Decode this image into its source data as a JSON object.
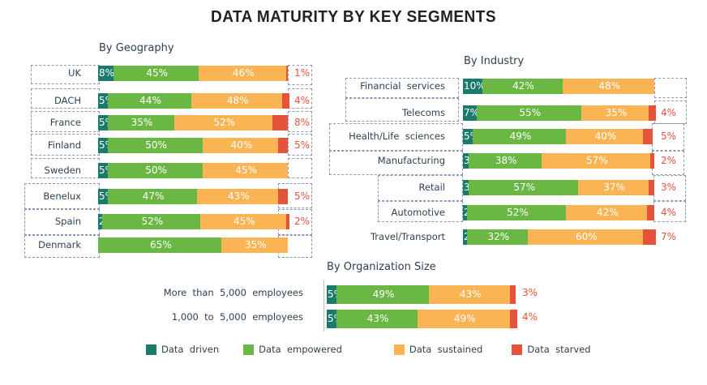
{
  "title": "DATA MATURITY BY KEY SEGMENTS",
  "colors": {
    "data_driven": "#1a7a6b",
    "data_empowered": "#6ab744",
    "data_sustained": "#fbb454",
    "data_starved": "#e5533b"
  },
  "legend": [
    {
      "key": "data_driven",
      "label": "Data  driven"
    },
    {
      "key": "data_empowered",
      "label": "Data  empowered"
    },
    {
      "key": "data_sustained",
      "label": "Data  sustained"
    },
    {
      "key": "data_starved",
      "label": "Data  starved"
    }
  ],
  "chart_data": [
    {
      "type": "bar",
      "stacked": true,
      "orientation": "horizontal",
      "title": "By Geography",
      "categories": [
        "UK",
        "DACH",
        "France",
        "Finland",
        "Sweden",
        "Benelux",
        "Spain",
        "Denmark"
      ],
      "series": [
        {
          "name": "Data driven",
          "values": [
            8,
            5,
            5,
            5,
            5,
            5,
            2,
            0
          ],
          "labels": [
            "8%",
            "5%",
            "5%",
            "5%",
            "5%",
            "5%",
            "2%",
            ""
          ]
        },
        {
          "name": "Data empowered",
          "values": [
            45,
            44,
            35,
            50,
            50,
            47,
            52,
            65
          ],
          "labels": [
            "45%",
            "44%",
            "35%",
            "50%",
            "50%",
            "47%",
            "52%",
            "65%"
          ]
        },
        {
          "name": "Data sustained",
          "values": [
            46,
            48,
            52,
            40,
            45,
            43,
            45,
            35
          ],
          "labels": [
            "46%",
            "48%",
            "52%",
            "40%",
            "45%",
            "43%",
            "45%",
            "35%"
          ]
        },
        {
          "name": "Data starved",
          "values": [
            1,
            4,
            8,
            5,
            0,
            5,
            2,
            0
          ],
          "labels": [
            "1%",
            "4%",
            "8%",
            "5%",
            "",
            "5%",
            "2%",
            ""
          ]
        }
      ],
      "xlim": [
        0,
        100
      ]
    },
    {
      "type": "bar",
      "stacked": true,
      "orientation": "horizontal",
      "title": "By Industry",
      "categories": [
        "Financial  services",
        "Telecoms",
        "Health/Life  sciences",
        "Manufacturing",
        "Retail",
        "Automotive",
        "Travel/Transport"
      ],
      "series": [
        {
          "name": "Data driven",
          "values": [
            10,
            7,
            5,
            3,
            3,
            2,
            2
          ],
          "labels": [
            "10%",
            "7%",
            "5%",
            "3%",
            "3%",
            "2%",
            "2%"
          ]
        },
        {
          "name": "Data empowered",
          "values": [
            42,
            55,
            49,
            38,
            57,
            52,
            32
          ],
          "labels": [
            "42%",
            "55%",
            "49%",
            "38%",
            "57%",
            "52%",
            "32%"
          ]
        },
        {
          "name": "Data sustained",
          "values": [
            48,
            35,
            40,
            57,
            37,
            42,
            60
          ],
          "labels": [
            "48%",
            "35%",
            "40%",
            "57%",
            "37%",
            "42%",
            "60%"
          ]
        },
        {
          "name": "Data starved",
          "values": [
            0,
            4,
            5,
            2,
            3,
            4,
            7
          ],
          "labels": [
            "",
            "4%",
            "5%",
            "2%",
            "3%",
            "4%",
            "7%"
          ]
        }
      ],
      "xlim": [
        0,
        100
      ]
    },
    {
      "type": "bar",
      "stacked": true,
      "orientation": "horizontal",
      "title": "By Organization  Size",
      "categories": [
        "More  than  5,000  employees",
        "1,000  to  5,000  employees"
      ],
      "series": [
        {
          "name": "Data driven",
          "values": [
            5,
            5
          ],
          "labels": [
            "5%",
            "5%"
          ]
        },
        {
          "name": "Data empowered",
          "values": [
            49,
            43
          ],
          "labels": [
            "49%",
            "43%"
          ]
        },
        {
          "name": "Data sustained",
          "values": [
            43,
            49
          ],
          "labels": [
            "43%",
            "49%"
          ]
        },
        {
          "name": "Data starved",
          "values": [
            3,
            4
          ],
          "labels": [
            "3%",
            "4%"
          ]
        }
      ],
      "xlim": [
        0,
        100
      ]
    }
  ]
}
